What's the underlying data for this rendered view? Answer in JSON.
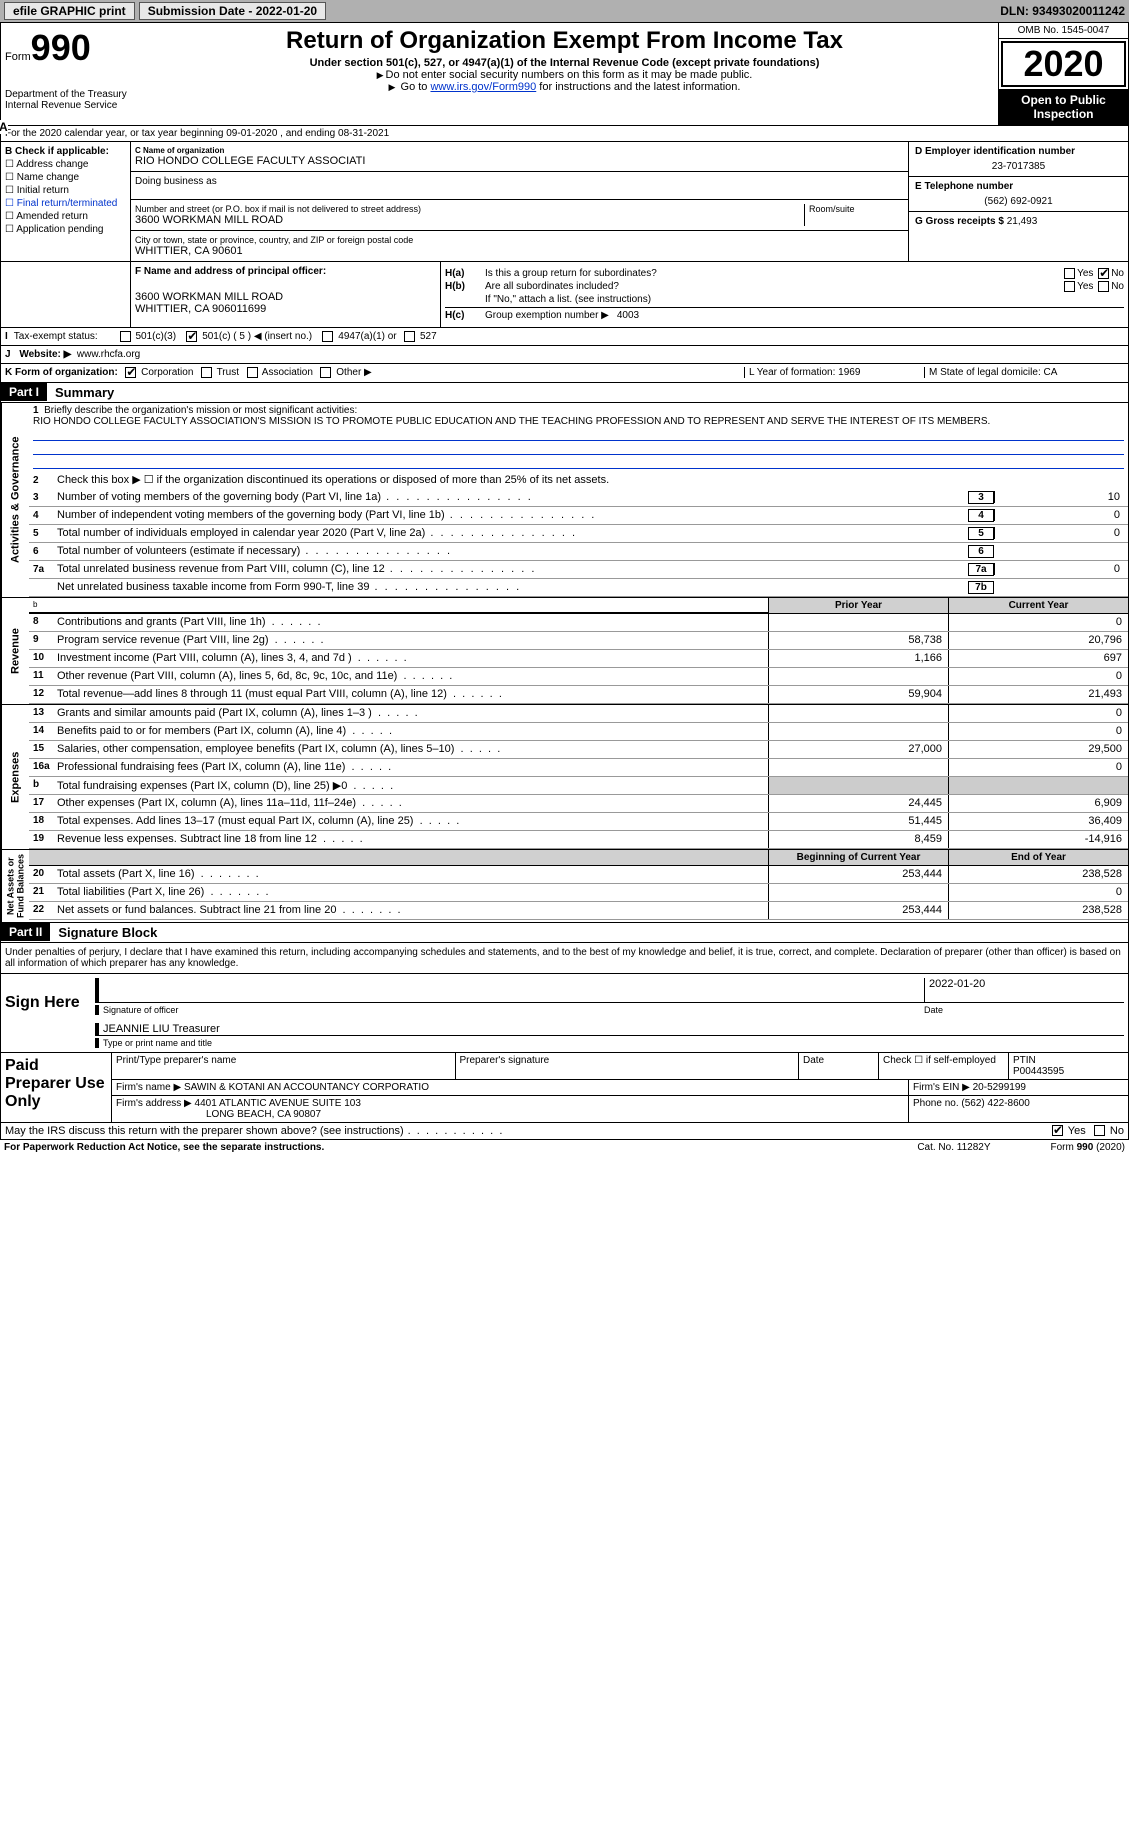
{
  "topbar": {
    "efile_btn": "efile GRAPHIC print",
    "submission_label": "Submission Date - 2022-01-20",
    "dln": "DLN: 93493020011242"
  },
  "header": {
    "form_word": "Form",
    "form_num": "990",
    "dept1": "Department of the Treasury",
    "dept2": "Internal Revenue Service",
    "title": "Return of Organization Exempt From Income Tax",
    "subtitle": "Under section 501(c), 527, or 4947(a)(1) of the Internal Revenue Code (except private foundations)",
    "note1": "Do not enter social security numbers on this form as it may be made public.",
    "note2_pre": "Go to ",
    "note2_link": "www.irs.gov/Form990",
    "note2_post": " for instructions and the latest information.",
    "omb": "OMB No. 1545-0047",
    "year": "2020",
    "open": "Open to Public Inspection"
  },
  "row_a": "For the 2020 calendar year, or tax year beginning 09-01-2020   , and ending 08-31-2021",
  "col_b": {
    "title": "B Check if applicable:",
    "opts": [
      "Address change",
      "Name change",
      "Initial return",
      "Final return/terminated",
      "Amended return",
      "Application pending"
    ]
  },
  "col_c": {
    "name_lbl": "C Name of organization",
    "name": "RIO HONDO COLLEGE FACULTY ASSOCIATI",
    "dba_lbl": "Doing business as",
    "addr_lbl": "Number and street (or P.O. box if mail is not delivered to street address)",
    "suite_lbl": "Room/suite",
    "addr": "3600 WORKMAN MILL ROAD",
    "city_lbl": "City or town, state or province, country, and ZIP or foreign postal code",
    "city": "WHITTIER, CA  90601"
  },
  "col_d": {
    "d_lbl": "D Employer identification number",
    "d_val": "23-7017385",
    "e_lbl": "E Telephone number",
    "e_val": "(562) 692-0921",
    "g_lbl": "G Gross receipts $",
    "g_val": "21,493"
  },
  "box_f": {
    "lbl": "F Name and address of principal officer:",
    "addr1": "3600 WORKMAN MILL ROAD",
    "addr2": "WHITTIER, CA  906011699"
  },
  "box_h": {
    "ha": "Is this a group return for subordinates?",
    "hb": "Are all subordinates included?",
    "hnote": "If \"No,\" attach a list. (see instructions)",
    "hc_lbl": "Group exemption number ▶",
    "hc_val": "4003",
    "yes": "Yes",
    "no": "No"
  },
  "line_i": {
    "lbl": "Tax-exempt status:",
    "o1": "501(c)(3)",
    "o2": "501(c) ( 5 ) ◀ (insert no.)",
    "o3": "4947(a)(1) or",
    "o4": "527"
  },
  "line_j": {
    "lbl": "Website: ▶",
    "val": "www.rhcfa.org"
  },
  "line_k": {
    "lbl": "K Form of organization:",
    "o1": "Corporation",
    "o2": "Trust",
    "o3": "Association",
    "o4": "Other ▶",
    "l": "L Year of formation: 1969",
    "m": "M State of legal domicile: CA"
  },
  "part1": {
    "num": "Part I",
    "title": "Summary"
  },
  "gov": {
    "l1": "Briefly describe the organization's mission or most significant activities:",
    "mission": "RIO HONDO COLLEGE FACULTY ASSOCIATION'S MISSION IS TO PROMOTE PUBLIC EDUCATION AND THE TEACHING PROFESSION AND TO REPRESENT AND SERVE THE INTEREST OF ITS MEMBERS.",
    "l2": "Check this box ▶ ☐ if the organization discontinued its operations or disposed of more than 25% of its net assets.",
    "rows": [
      {
        "n": "3",
        "t": "Number of voting members of the governing body (Part VI, line 1a)",
        "box": "3",
        "v": "10"
      },
      {
        "n": "4",
        "t": "Number of independent voting members of the governing body (Part VI, line 1b)",
        "box": "4",
        "v": "0"
      },
      {
        "n": "5",
        "t": "Total number of individuals employed in calendar year 2020 (Part V, line 2a)",
        "box": "5",
        "v": "0"
      },
      {
        "n": "6",
        "t": "Total number of volunteers (estimate if necessary)",
        "box": "6",
        "v": ""
      },
      {
        "n": "7a",
        "t": "Total unrelated business revenue from Part VIII, column (C), line 12",
        "box": "7a",
        "v": "0"
      },
      {
        "n": "",
        "t": "Net unrelated business taxable income from Form 990-T, line 39",
        "box": "7b",
        "v": ""
      }
    ]
  },
  "hdr_py": "Prior Year",
  "hdr_cy": "Current Year",
  "rev": [
    {
      "n": "8",
      "t": "Contributions and grants (Part VIII, line 1h)",
      "v1": "",
      "v2": "0"
    },
    {
      "n": "9",
      "t": "Program service revenue (Part VIII, line 2g)",
      "v1": "58,738",
      "v2": "20,796"
    },
    {
      "n": "10",
      "t": "Investment income (Part VIII, column (A), lines 3, 4, and 7d )",
      "v1": "1,166",
      "v2": "697"
    },
    {
      "n": "11",
      "t": "Other revenue (Part VIII, column (A), lines 5, 6d, 8c, 9c, 10c, and 11e)",
      "v1": "",
      "v2": "0"
    },
    {
      "n": "12",
      "t": "Total revenue—add lines 8 through 11 (must equal Part VIII, column (A), line 12)",
      "v1": "59,904",
      "v2": "21,493"
    }
  ],
  "exp": [
    {
      "n": "13",
      "t": "Grants and similar amounts paid (Part IX, column (A), lines 1–3 )",
      "v1": "",
      "v2": "0"
    },
    {
      "n": "14",
      "t": "Benefits paid to or for members (Part IX, column (A), line 4)",
      "v1": "",
      "v2": "0"
    },
    {
      "n": "15",
      "t": "Salaries, other compensation, employee benefits (Part IX, column (A), lines 5–10)",
      "v1": "27,000",
      "v2": "29,500"
    },
    {
      "n": "16a",
      "t": "Professional fundraising fees (Part IX, column (A), line 11e)",
      "v1": "",
      "v2": "0"
    },
    {
      "n": "b",
      "t": "Total fundraising expenses (Part IX, column (D), line 25) ▶0",
      "v1": "shade",
      "v2": "shade"
    },
    {
      "n": "17",
      "t": "Other expenses (Part IX, column (A), lines 11a–11d, 11f–24e)",
      "v1": "24,445",
      "v2": "6,909"
    },
    {
      "n": "18",
      "t": "Total expenses. Add lines 13–17 (must equal Part IX, column (A), line 25)",
      "v1": "51,445",
      "v2": "36,409"
    },
    {
      "n": "19",
      "t": "Revenue less expenses. Subtract line 18 from line 12",
      "v1": "8,459",
      "v2": "-14,916"
    }
  ],
  "hdr_boy": "Beginning of Current Year",
  "hdr_eoy": "End of Year",
  "net": [
    {
      "n": "20",
      "t": "Total assets (Part X, line 16)",
      "v1": "253,444",
      "v2": "238,528"
    },
    {
      "n": "21",
      "t": "Total liabilities (Part X, line 26)",
      "v1": "",
      "v2": "0"
    },
    {
      "n": "22",
      "t": "Net assets or fund balances. Subtract line 21 from line 20",
      "v1": "253,444",
      "v2": "238,528"
    }
  ],
  "part2": {
    "num": "Part II",
    "title": "Signature Block"
  },
  "penalties": "Under penalties of perjury, I declare that I have examined this return, including accompanying schedules and statements, and to the best of my knowledge and belief, it is true, correct, and complete. Declaration of preparer (other than officer) is based on all information of which preparer has any knowledge.",
  "sign": {
    "label": "Sign Here",
    "sig_lbl": "Signature of officer",
    "date_lbl": "Date",
    "date_val": "2022-01-20",
    "name": "JEANNIE LIU Treasurer",
    "name_lbl": "Type or print name and title"
  },
  "prep": {
    "label": "Paid Preparer Use Only",
    "c1": "Print/Type preparer's name",
    "c2": "Preparer's signature",
    "c3": "Date",
    "c4_pre": "Check ☐ if self-employed",
    "c5_lbl": "PTIN",
    "c5_val": "P00443595",
    "firm_lbl": "Firm's name   ▶",
    "firm": "SAWIN & KOTANI AN ACCOUNTANCY CORPORATIO",
    "ein_lbl": "Firm's EIN ▶",
    "ein": "20-5299199",
    "faddr_lbl": "Firm's address ▶",
    "faddr1": "4401 ATLANTIC AVENUE SUITE 103",
    "faddr2": "LONG BEACH, CA  90807",
    "phone_lbl": "Phone no.",
    "phone": "(562) 422-8600"
  },
  "may": "May the IRS discuss this return with the preparer shown above? (see instructions)",
  "footer": {
    "left": "For Paperwork Reduction Act Notice, see the separate instructions.",
    "mid": "Cat. No. 11282Y",
    "right": "Form 990 (2020)"
  }
}
